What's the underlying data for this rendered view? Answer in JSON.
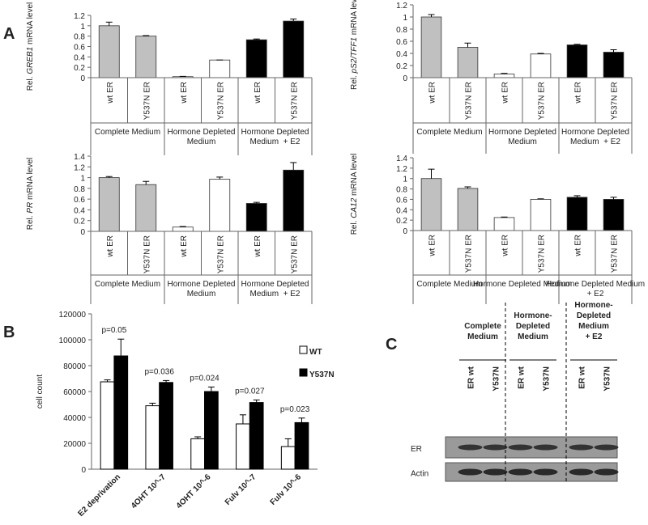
{
  "panels": [
    "A",
    "B",
    "C"
  ],
  "chart_data": [
    {
      "type": "bar",
      "ylabel": [
        "Rel. ",
        "GREB1",
        " mRNA level"
      ],
      "categories": [
        "wt ER",
        "Y537N ER",
        "wt ER",
        "Y537N ER",
        "wt ER",
        "Y537N ER"
      ],
      "groups": [
        [
          "Complete Medium"
        ],
        [
          "Hormone Depleted",
          "Medium"
        ],
        [
          "Hormone Depleted",
          "Medium  + E2"
        ]
      ],
      "values": [
        1.0,
        0.8,
        0.02,
        0.34,
        0.73,
        1.09
      ],
      "errors": [
        0.07,
        0.01,
        0.005,
        0,
        0.015,
        0.04
      ],
      "colors": [
        "#c0c0c0",
        "#c0c0c0",
        "#ffffff",
        "#ffffff",
        "#000000",
        "#000000"
      ],
      "ylim": [
        0,
        1.2
      ],
      "yticks": [
        0,
        0.2,
        0.4,
        0.6,
        0.8,
        1,
        1.2
      ]
    },
    {
      "type": "bar",
      "ylabel": [
        "Rel. ",
        "pS2/TFF1",
        " mRNA level"
      ],
      "categories": [
        "wt ER",
        "Y537N ER",
        "wt ER",
        "Y537N ER",
        "wt ER",
        "Y537N ER"
      ],
      "groups": [
        [
          "Complete Medium"
        ],
        [
          "Hormone Depleted",
          "Medium"
        ],
        [
          "Hormone Depleted",
          "Medium  + E2"
        ]
      ],
      "values": [
        1.0,
        0.5,
        0.06,
        0.39,
        0.54,
        0.42
      ],
      "errors": [
        0.04,
        0.07,
        0.01,
        0.01,
        0.01,
        0.04
      ],
      "colors": [
        "#c0c0c0",
        "#c0c0c0",
        "#ffffff",
        "#ffffff",
        "#000000",
        "#000000"
      ],
      "ylim": [
        0,
        1.2
      ],
      "yticks": [
        0,
        0.2,
        0.4,
        0.6,
        0.8,
        1,
        1.2
      ]
    },
    {
      "type": "bar",
      "ylabel": [
        "Rel. ",
        "PR",
        " mRNA level"
      ],
      "categories": [
        "wt ER",
        "Y537N ER",
        "wt ER",
        "Y537N ER",
        "wt ER",
        "Y537N ER"
      ],
      "groups": [
        [
          "Complete Medium"
        ],
        [
          "Hormone Depleted",
          "Medium"
        ],
        [
          "Hormone Depleted",
          "Medium  + E2"
        ]
      ],
      "values": [
        1.0,
        0.87,
        0.08,
        0.97,
        0.52,
        1.14
      ],
      "errors": [
        0.02,
        0.06,
        0.01,
        0.04,
        0.02,
        0.14
      ],
      "colors": [
        "#c0c0c0",
        "#c0c0c0",
        "#ffffff",
        "#ffffff",
        "#000000",
        "#000000"
      ],
      "ylim": [
        0,
        1.4
      ],
      "yticks": [
        0,
        0.2,
        0.4,
        0.6,
        0.8,
        1,
        1.2,
        1.4
      ]
    },
    {
      "type": "bar",
      "ylabel": [
        "Rel. ",
        "CA12",
        " mRNA level"
      ],
      "categories": [
        "wt ER",
        "Y537N ER",
        "wt ER",
        "Y537N ER",
        "wt ER",
        "Y537N ER"
      ],
      "groups": [
        [
          "Complete Medium"
        ],
        [
          "Hormone Depleted Medium"
        ],
        [
          "Hormone Depleted Medium",
          "+ E2"
        ]
      ],
      "values": [
        1.0,
        0.81,
        0.25,
        0.6,
        0.64,
        0.6
      ],
      "errors": [
        0.18,
        0.03,
        0.01,
        0.01,
        0.03,
        0.04
      ],
      "colors": [
        "#c0c0c0",
        "#c0c0c0",
        "#ffffff",
        "#ffffff",
        "#000000",
        "#000000"
      ],
      "ylim": [
        0,
        1.4
      ],
      "yticks": [
        0,
        0.2,
        0.4,
        0.6,
        0.8,
        1,
        1.2,
        1.4
      ]
    },
    {
      "type": "grouped_bar",
      "ylabel": "cell count",
      "categories": [
        "E2 deprivation",
        "4OHT 10^-7",
        "4OHT 10^-6",
        "Fulv 10^-7",
        "Fulv 10^-6"
      ],
      "series": [
        {
          "name": "WT",
          "color": "#ffffff",
          "values": [
            67500,
            49000,
            23500,
            35000,
            17500
          ],
          "errors": [
            1500,
            2000,
            1500,
            7000,
            6000
          ]
        },
        {
          "name": "Y537N",
          "color": "#000000",
          "values": [
            87500,
            67000,
            60000,
            51500,
            36000
          ],
          "errors": [
            13000,
            1500,
            3500,
            2000,
            3500
          ]
        }
      ],
      "annotations": [
        "p=0.05",
        "p=0.036",
        "p=0.024",
        "p=0.027",
        "p=0.023"
      ],
      "ylim": [
        0,
        120000
      ],
      "yticks": [
        0,
        20000,
        40000,
        60000,
        80000,
        100000,
        120000
      ],
      "legend": "right"
    }
  ],
  "blot": {
    "headers": [
      [
        "Complete",
        "Medium"
      ],
      [
        "Hormone-",
        "Depleted",
        "Medium"
      ],
      [
        "Hormone-",
        "Depleted",
        "Medium",
        "+ E2"
      ]
    ],
    "lanes": [
      "ER wt",
      "Y537N",
      "ER wt",
      "Y537N",
      "ER wt",
      "Y537N"
    ],
    "rows": [
      "ER",
      "Actin"
    ]
  }
}
